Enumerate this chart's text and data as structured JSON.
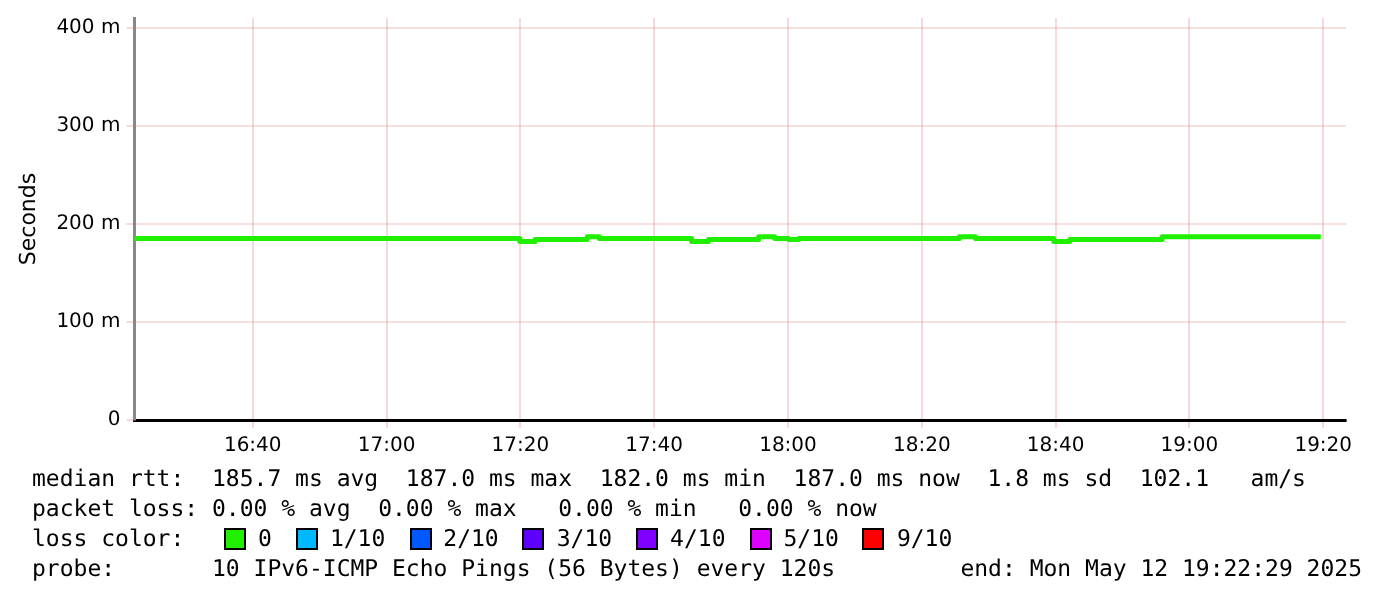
{
  "chart_data": {
    "type": "step",
    "ylabel": "Seconds",
    "legend_title": "loss color:",
    "legend": "bottom",
    "grid": true,
    "marker": "none",
    "xlim": [
      16.372,
      19.39
    ],
    "xticks": [
      {
        "value": 16.6667,
        "label": "16:40"
      },
      {
        "value": 17,
        "label": "17:00"
      },
      {
        "value": 17.3333,
        "label": "17:20"
      },
      {
        "value": 17.6667,
        "label": "17:40"
      },
      {
        "value": 18,
        "label": "18:00"
      },
      {
        "value": 18.3333,
        "label": "18:20"
      },
      {
        "value": 18.6667,
        "label": "18:40"
      },
      {
        "value": 19,
        "label": "19:00"
      },
      {
        "value": 19.3333,
        "label": "19:20"
      }
    ],
    "ylim": [
      0,
      410
    ],
    "yticks": [
      0,
      {
        "value": 100,
        "label": "100 m"
      },
      {
        "value": 200,
        "label": "200 m"
      },
      {
        "value": 300,
        "label": "300 m"
      },
      {
        "value": 400,
        "label": "400 m"
      }
    ],
    "x": [
      16.372,
      17.332,
      17.37,
      17.5,
      17.53,
      17.76,
      17.802,
      17.927,
      17.967,
      18.002,
      18.027,
      18.427,
      18.467,
      18.662,
      18.702,
      18.932,
      18.967,
      19.327
    ],
    "series": [
      {
        "name": "0",
        "color": "#20f000",
        "values": [
          187,
          185,
          182,
          184,
          187,
          185,
          182,
          184,
          187,
          185,
          184,
          185,
          187,
          185,
          182,
          184,
          187,
          187
        ]
      },
      {
        "name": "1/10",
        "color": "#00b8ff",
        "values": [
          null,
          null,
          null,
          null,
          null,
          null,
          null,
          null,
          null,
          null,
          null,
          null,
          null,
          null,
          null,
          null,
          null,
          null
        ]
      },
      {
        "name": "2/10",
        "color": "#0059ff",
        "values": [
          null,
          null,
          null,
          null,
          null,
          null,
          null,
          null,
          null,
          null,
          null,
          null,
          null,
          null,
          null,
          null,
          null,
          null
        ]
      },
      {
        "name": "3/10",
        "color": "#5e00ff",
        "values": [
          null,
          null,
          null,
          null,
          null,
          null,
          null,
          null,
          null,
          null,
          null,
          null,
          null,
          null,
          null,
          null,
          null,
          null
        ]
      },
      {
        "name": "4/10",
        "color": "#7e00ff",
        "values": [
          null,
          null,
          null,
          null,
          null,
          null,
          null,
          null,
          null,
          null,
          null,
          null,
          null,
          null,
          null,
          null,
          null,
          null
        ]
      },
      {
        "name": "5/10",
        "color": "#dd00ff",
        "values": [
          null,
          null,
          null,
          null,
          null,
          null,
          null,
          null,
          null,
          null,
          null,
          null,
          null,
          null,
          null,
          null,
          null,
          null
        ]
      },
      {
        "name": "9/10",
        "color": "#ff0000",
        "values": [
          null,
          null,
          null,
          null,
          null,
          null,
          null,
          null,
          null,
          null,
          null,
          null,
          null,
          null,
          null,
          null,
          null,
          null
        ]
      }
    ],
    "annotations": [
      "median rtt:  185.7 ms avg  187.0 ms max  182.0 ms min  187.0 ms now  1.8 ms sd  102.1   am/s",
      "packet loss: 0.00 % avg  0.00 % max   0.00 % min   0.00 % now",
      "probe:       10 IPv6-ICMP Echo Pings (56 Bytes) every 120s",
      "end: Mon May 12 19:22:29 2025"
    ]
  }
}
